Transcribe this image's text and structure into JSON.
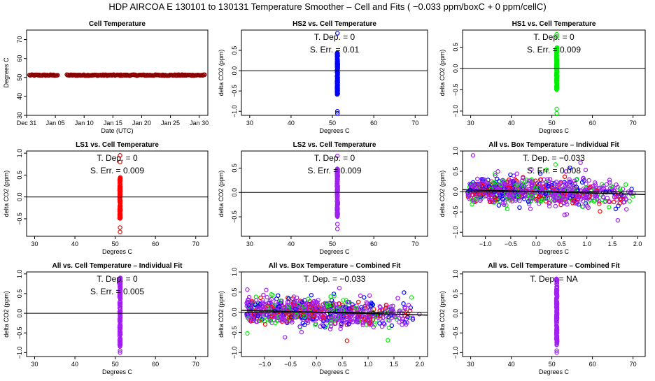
{
  "page_title": "HDP   AIRCOA E   130101 to 130131   Temperature Smoother – Cell and Fits ( −0.033  ppm/boxC +  0  ppm/cellC)",
  "colors": {
    "red": "#ff0000",
    "blue": "#0000ff",
    "green": "#00ee00",
    "purple": "#a020f0",
    "darkred": "#8b0000",
    "axis": "#000000"
  },
  "chart_data": [
    {
      "id": "cell-temperature",
      "type": "scatter",
      "title": "Cell Temperature",
      "xlabel": "Date (UTC)",
      "ylabel": "Degrees C",
      "xlim": [
        0,
        31.5
      ],
      "ylim": [
        30,
        75
      ],
      "yticks": [
        30,
        40,
        50,
        60,
        70
      ],
      "xticks": [
        {
          "v": 0,
          "label": "Dec 31"
        },
        {
          "v": 5,
          "label": "Jan 05"
        },
        {
          "v": 10,
          "label": "Jan 10"
        },
        {
          "v": 15,
          "label": "Jan 15"
        },
        {
          "v": 20,
          "label": "Jan 20"
        },
        {
          "v": 25,
          "label": "Jan 25"
        },
        {
          "v": 30,
          "label": "Jan 30"
        }
      ],
      "series": [
        {
          "name": "cell",
          "color": "darkred",
          "segments": [
            [
              0.5,
              5.5
            ],
            [
              7.0,
              31.0
            ]
          ],
          "value": 51.2
        }
      ]
    },
    {
      "id": "hs2-vs-cell",
      "type": "scatter",
      "title": "HS2 vs. Cell Temperature",
      "xlabel": "Degrees C",
      "ylabel": "delta CO2 (ppm)",
      "xlim": [
        28,
        73
      ],
      "ylim": [
        -1.1,
        1.0
      ],
      "xticks": [
        30,
        40,
        50,
        60,
        70
      ],
      "yticks": [
        -1.0,
        -0.5,
        0.0,
        0.5
      ],
      "hline": 0,
      "annotations": [
        "T. Dep. =  0",
        "S. Err. =  0.01"
      ],
      "series": [
        {
          "name": "HS2",
          "color": "blue",
          "x": 51.2,
          "yrange": [
            -0.6,
            0.45
          ],
          "outliers": [
            0.92,
            -1.0,
            -1.05
          ]
        }
      ]
    },
    {
      "id": "hs1-vs-cell",
      "type": "scatter",
      "title": "HS1 vs. Cell Temperature",
      "xlabel": "Degrees C",
      "ylabel": "delta CO2 (ppm)",
      "xlim": [
        28,
        73
      ],
      "ylim": [
        -1.1,
        0.9
      ],
      "xticks": [
        30,
        40,
        50,
        60,
        70
      ],
      "yticks": [
        -1.0,
        -0.5,
        0.0,
        0.5
      ],
      "hline": 0,
      "annotations": [
        "T. Dep. =  0",
        "S. Err. =  0.009"
      ],
      "series": [
        {
          "name": "HS1",
          "color": "green",
          "x": 51.2,
          "yrange": [
            -0.5,
            0.5
          ],
          "outliers": [
            0.8,
            0.75,
            -0.95,
            -1.05
          ]
        }
      ]
    },
    {
      "id": "ls1-vs-cell",
      "type": "scatter",
      "title": "LS1 vs. Cell Temperature",
      "xlabel": "Degrees C",
      "ylabel": "delta CO2 (ppm)",
      "xlim": [
        28,
        73
      ],
      "ylim": [
        -0.9,
        1.05
      ],
      "xticks": [
        30,
        40,
        50,
        60,
        70
      ],
      "yticks": [
        -0.5,
        0.0,
        0.5,
        1.0
      ],
      "hline": 0,
      "annotations": [
        "T. Dep. =  0",
        "S. Err. =  0.009"
      ],
      "series": [
        {
          "name": "LS1",
          "color": "red",
          "x": 51.2,
          "yrange": [
            -0.5,
            0.45
          ],
          "outliers": [
            0.95,
            0.8,
            -0.7,
            -0.8
          ]
        }
      ]
    },
    {
      "id": "ls2-vs-cell",
      "type": "scatter",
      "title": "LS2 vs. Cell Temperature",
      "xlabel": "Degrees C",
      "ylabel": "delta CO2 (ppm)",
      "xlim": [
        28,
        73
      ],
      "ylim": [
        -0.9,
        0.85
      ],
      "xticks": [
        30,
        40,
        50,
        60,
        70
      ],
      "yticks": [
        -0.5,
        0.0,
        0.5
      ],
      "hline": 0,
      "annotations": [
        "T. Dep. =  0",
        "S. Err. =  0.009"
      ],
      "series": [
        {
          "name": "LS2",
          "color": "purple",
          "x": 51.2,
          "yrange": [
            -0.5,
            0.5
          ],
          "outliers": [
            0.75,
            -0.65,
            -0.75
          ]
        }
      ]
    },
    {
      "id": "all-vs-box-individual",
      "type": "scatter",
      "title": "All vs. Box Temperature – Individual Fit",
      "xlabel": "Degrees C",
      "ylabel": "delta CO2 (ppm)",
      "xlim": [
        -1.45,
        2.15
      ],
      "ylim": [
        -1.1,
        1.0
      ],
      "xticks": [
        -1.0,
        -0.5,
        0.0,
        0.5,
        1.0,
        1.5,
        2.0
      ],
      "yticks": [
        -1.0,
        -0.5,
        0.0,
        0.5,
        1.0
      ],
      "hline": 0,
      "fit": {
        "slope": -0.033,
        "intercept": 0
      },
      "annotations": [
        "T. Dep. =  −0.033",
        "S. Err. =  0.008"
      ],
      "series": [
        {
          "name": "red",
          "color": "red"
        },
        {
          "name": "blue",
          "color": "blue"
        },
        {
          "name": "green",
          "color": "green"
        },
        {
          "name": "purple",
          "color": "purple"
        }
      ],
      "cloud": {
        "x": [
          -1.35,
          2.05
        ],
        "spread": 0.42
      }
    },
    {
      "id": "all-vs-cell-individual",
      "type": "scatter",
      "title": "All vs. Cell Temperature – Individual Fit",
      "xlabel": "Degrees C",
      "ylabel": "delta CO2 (ppm)",
      "xlim": [
        28,
        73
      ],
      "ylim": [
        -1.1,
        1.05
      ],
      "xticks": [
        30,
        40,
        50,
        60,
        70
      ],
      "yticks": [
        -1.0,
        -0.5,
        0.0,
        0.5,
        1.0
      ],
      "hline": 0,
      "annotations": [
        "T. Dep. =  0",
        "S. Err. =  0.005"
      ],
      "series": [
        {
          "name": "All",
          "color": "purple",
          "x": 51.2,
          "yrange": [
            -0.85,
            0.9
          ],
          "outliers": [
            -0.95,
            -1.0
          ]
        }
      ]
    },
    {
      "id": "all-vs-box-combined",
      "type": "scatter",
      "title": "All vs. Box Temperature – Combined Fit",
      "xlabel": "Degrees C",
      "ylabel": "delta CO2 (ppm)",
      "xlim": [
        -1.45,
        2.15
      ],
      "ylim": [
        -1.1,
        1.0
      ],
      "xticks": [
        -1.0,
        -0.5,
        0.0,
        0.5,
        1.0,
        1.5,
        2.0
      ],
      "yticks": [
        -1.0,
        -0.5,
        0.0,
        0.5,
        1.0
      ],
      "hline": 0,
      "fit": {
        "slope": -0.033,
        "intercept": 0
      },
      "annotations": [
        "T. Dep. =  −0.033"
      ],
      "series": [
        {
          "name": "red",
          "color": "red"
        },
        {
          "name": "blue",
          "color": "blue"
        },
        {
          "name": "green",
          "color": "green"
        },
        {
          "name": "purple",
          "color": "purple"
        }
      ],
      "cloud": {
        "x": [
          -1.35,
          2.05
        ],
        "spread": 0.42
      }
    },
    {
      "id": "all-vs-cell-combined",
      "type": "scatter",
      "title": "All vs. Cell Temperature – Combined Fit",
      "xlabel": "Degrees C",
      "ylabel": "delta CO2 (ppm)",
      "xlim": [
        28,
        73
      ],
      "ylim": [
        -1.1,
        1.05
      ],
      "xticks": [
        30,
        40,
        50,
        60,
        70
      ],
      "yticks": [
        -1.0,
        -0.5,
        0.0,
        0.5,
        1.0
      ],
      "annotations": [
        "T. Dep. =  NA"
      ],
      "series": [
        {
          "name": "All",
          "color": "purple",
          "x": 51.2,
          "yrange": [
            -0.85,
            0.9
          ],
          "outliers": [
            -0.95,
            -1.0
          ]
        }
      ]
    }
  ]
}
